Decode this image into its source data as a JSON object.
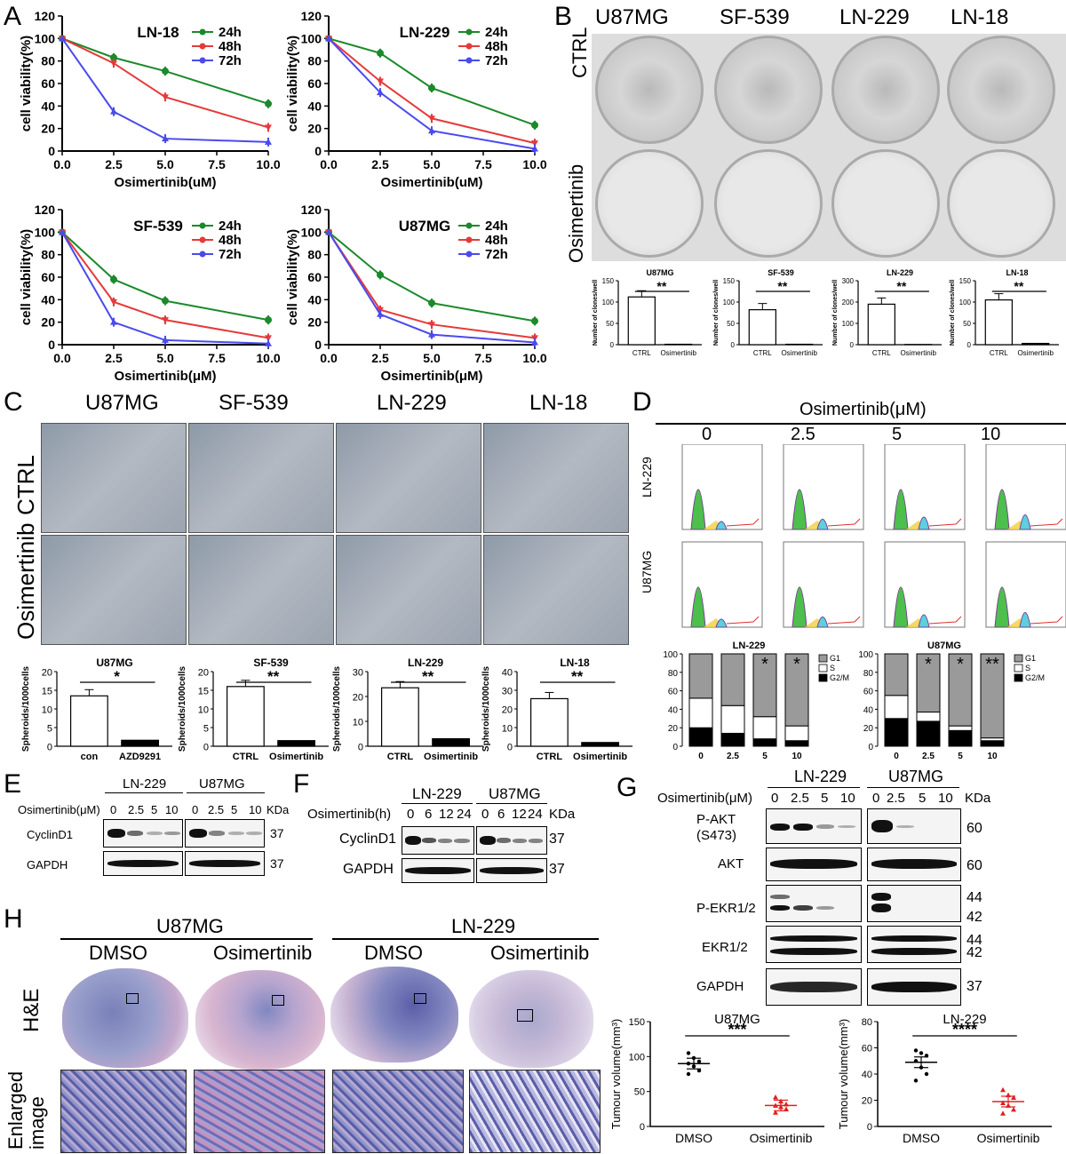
{
  "panels": {
    "A": "A",
    "B": "B",
    "C": "C",
    "D": "D",
    "E": "E",
    "F": "F",
    "G": "G",
    "H": "H"
  },
  "chart_data": [
    {
      "type": "line",
      "title": "LN-18",
      "xlabel": "Osimertinib(uM)",
      "ylabel": "cell viability(%)",
      "x": [
        0,
        2.5,
        5,
        10
      ],
      "xlim": [
        0,
        10
      ],
      "ylim": [
        0,
        120
      ],
      "xticks": [
        "0.0",
        "2.5",
        "5.0",
        "7.5",
        "10.0"
      ],
      "yticks": [
        "0",
        "20",
        "40",
        "60",
        "80",
        "100",
        "120"
      ],
      "series": [
        {
          "name": "24h",
          "color": "#1a8a2a",
          "values": [
            100,
            83,
            71,
            42
          ]
        },
        {
          "name": "48h",
          "color": "#e53a3a",
          "values": [
            100,
            78,
            48,
            21
          ]
        },
        {
          "name": "72h",
          "color": "#4a4aee",
          "values": [
            100,
            35,
            11,
            8
          ]
        }
      ]
    },
    {
      "type": "line",
      "title": "LN-229",
      "xlabel": "Osimertinib(uM)",
      "ylabel": "cell viability(%)",
      "x": [
        0,
        2.5,
        5,
        10
      ],
      "xlim": [
        0,
        10
      ],
      "ylim": [
        0,
        120
      ],
      "xticks": [
        "0.0",
        "2.5",
        "5.0",
        "7.5",
        "10.0"
      ],
      "yticks": [
        "0",
        "20",
        "40",
        "60",
        "80",
        "100",
        "120"
      ],
      "series": [
        {
          "name": "24h",
          "color": "#1a8a2a",
          "values": [
            100,
            87,
            56,
            23
          ]
        },
        {
          "name": "48h",
          "color": "#e53a3a",
          "values": [
            100,
            62,
            29,
            7
          ]
        },
        {
          "name": "72h",
          "color": "#4a4aee",
          "values": [
            100,
            52,
            18,
            2
          ]
        }
      ]
    },
    {
      "type": "line",
      "title": "SF-539",
      "xlabel": "Osimertinib(μM)",
      "ylabel": "cell viability(%)",
      "x": [
        0,
        2.5,
        5,
        10
      ],
      "xlim": [
        0,
        10
      ],
      "ylim": [
        0,
        120
      ],
      "xticks": [
        "0.0",
        "2.5",
        "5.0",
        "7.5",
        "10.0"
      ],
      "yticks": [
        "0",
        "20",
        "40",
        "60",
        "80",
        "100",
        "120"
      ],
      "series": [
        {
          "name": "24h",
          "color": "#1a8a2a",
          "values": [
            100,
            58,
            39,
            22
          ]
        },
        {
          "name": "48h",
          "color": "#e53a3a",
          "values": [
            100,
            38,
            22,
            6
          ]
        },
        {
          "name": "72h",
          "color": "#4a4aee",
          "values": [
            100,
            20,
            4,
            1
          ]
        }
      ]
    },
    {
      "type": "line",
      "title": "U87MG",
      "xlabel": "Osimertinib(μM)",
      "ylabel": "cell viability(%)",
      "x": [
        0,
        2.5,
        5,
        10
      ],
      "xlim": [
        0,
        10
      ],
      "ylim": [
        0,
        120
      ],
      "xticks": [
        "0.0",
        "2.5",
        "5.0",
        "7.5",
        "10.0"
      ],
      "yticks": [
        "0",
        "20",
        "40",
        "60",
        "80",
        "100",
        "120"
      ],
      "series": [
        {
          "name": "24h",
          "color": "#1a8a2a",
          "values": [
            100,
            62,
            37,
            21
          ]
        },
        {
          "name": "48h",
          "color": "#e53a3a",
          "values": [
            100,
            31,
            18,
            6
          ]
        },
        {
          "name": "72h",
          "color": "#4a4aee",
          "values": [
            100,
            27,
            9,
            2
          ]
        }
      ]
    },
    {
      "type": "bar",
      "title": "U87MG",
      "ylabel": "Number of clones/well",
      "sig": "**",
      "categories": [
        "CTRL",
        "Osimertinib"
      ],
      "values": [
        112,
        1
      ],
      "ylim": [
        0,
        150
      ],
      "yticks": [
        "0",
        "50",
        "100",
        "150"
      ]
    },
    {
      "type": "bar",
      "title": "SF-539",
      "ylabel": "Number of clones/well",
      "sig": "**",
      "categories": [
        "CTRL",
        "Osimertinib"
      ],
      "values": [
        82,
        1
      ],
      "ylim": [
        0,
        150
      ],
      "yticks": [
        "0",
        "50",
        "100",
        "150"
      ]
    },
    {
      "type": "bar",
      "title": "LN-229",
      "ylabel": "Number of clones/well",
      "sig": "**",
      "categories": [
        "CTRL",
        "Osimertinib"
      ],
      "values": [
        190,
        1
      ],
      "ylim": [
        0,
        300
      ],
      "yticks": [
        "0",
        "100",
        "200",
        "300"
      ]
    },
    {
      "type": "bar",
      "title": "LN-18",
      "ylabel": "Number of clones/well",
      "sig": "**",
      "categories": [
        "CTRL",
        "Osimertinib"
      ],
      "values": [
        105,
        3
      ],
      "ylim": [
        0,
        150
      ],
      "yticks": [
        "0",
        "50",
        "100",
        "150"
      ]
    },
    {
      "type": "bar",
      "title": "U87MG",
      "ylabel": "Spheroids/1000cells",
      "sig": "*",
      "categories": [
        "con",
        "AZD9291"
      ],
      "values": [
        13.5,
        1.6
      ],
      "ylim": [
        0,
        20
      ],
      "yticks": [
        "0",
        "5",
        "10",
        "15",
        "20"
      ]
    },
    {
      "type": "bar",
      "title": "SF-539",
      "ylabel": "Spheroids/1000cells",
      "sig": "**",
      "categories": [
        "CTRL",
        "Osimertinib"
      ],
      "values": [
        16,
        1.5
      ],
      "ylim": [
        0,
        20
      ],
      "yticks": [
        "0",
        "5",
        "10",
        "15",
        "20"
      ]
    },
    {
      "type": "bar",
      "title": "LN-229",
      "ylabel": "Spheroids/1000cells",
      "sig": "**",
      "categories": [
        "CTRL",
        "Osimertinib"
      ],
      "values": [
        23.5,
        3
      ],
      "ylim": [
        0,
        30
      ],
      "yticks": [
        "0",
        "10",
        "20",
        "30"
      ]
    },
    {
      "type": "bar",
      "title": "LN-18",
      "ylabel": "Spheroids/1000cells",
      "sig": "**",
      "categories": [
        "CTRL",
        "Osimertinib"
      ],
      "values": [
        25.5,
        2
      ],
      "ylim": [
        0,
        40
      ],
      "yticks": [
        "0",
        "10",
        "20",
        "30",
        "40"
      ]
    },
    {
      "type": "bar",
      "stacked": true,
      "title": "LN-229",
      "categories": [
        "0",
        "2.5",
        "5",
        "10"
      ],
      "ylim": [
        0,
        100
      ],
      "yticks": [
        "0",
        "20",
        "40",
        "60",
        "80",
        "100"
      ],
      "sig": [
        "",
        "",
        "*",
        "*"
      ],
      "series": [
        {
          "name": "G2/M",
          "color": "#000000",
          "values": [
            20,
            14,
            8,
            6
          ]
        },
        {
          "name": "S",
          "color": "#ffffff",
          "values": [
            32,
            30,
            24,
            16
          ]
        },
        {
          "name": "G1",
          "color": "#9a9a9a",
          "values": [
            48,
            56,
            68,
            78
          ]
        }
      ]
    },
    {
      "type": "bar",
      "stacked": true,
      "title": "U87MG",
      "categories": [
        "0",
        "2.5",
        "5",
        "10"
      ],
      "ylim": [
        0,
        100
      ],
      "yticks": [
        "0",
        "20",
        "40",
        "60",
        "80",
        "100"
      ],
      "sig": [
        "",
        "*",
        "*",
        "**"
      ],
      "series": [
        {
          "name": "G2/M",
          "color": "#000000",
          "values": [
            30,
            27,
            17,
            6
          ]
        },
        {
          "name": "S",
          "color": "#ffffff",
          "values": [
            25,
            10,
            5,
            3
          ]
        },
        {
          "name": "G1",
          "color": "#9a9a9a",
          "values": [
            45,
            63,
            78,
            91
          ]
        }
      ]
    },
    {
      "type": "scatter",
      "title": "U87MG",
      "ylabel": "Tumour volume(mm³)",
      "sig": "***",
      "categories": [
        "DMSO",
        "Osimertinib"
      ],
      "ylim": [
        0,
        150
      ],
      "yticks": [
        "0",
        "50",
        "100",
        "150"
      ],
      "series": [
        {
          "name": "DMSO",
          "color": "#000000",
          "values": [
            105,
            98,
            93,
            90,
            86,
            80,
            75
          ]
        },
        {
          "name": "Osimertinib",
          "color": "#e02020",
          "values": [
            42,
            36,
            32,
            30,
            28,
            25,
            20
          ]
        }
      ],
      "means": [
        90,
        30
      ]
    },
    {
      "type": "scatter",
      "title": "LN-229",
      "ylabel": "Tumour volume(mm³)",
      "sig": "****",
      "categories": [
        "DMSO",
        "Osimertinib"
      ],
      "ylim": [
        0,
        80
      ],
      "yticks": [
        "0",
        "20",
        "40",
        "60",
        "80"
      ],
      "series": [
        {
          "name": "DMSO",
          "color": "#000000",
          "values": [
            58,
            56,
            54,
            50,
            45,
            40,
            35
          ]
        },
        {
          "name": "Osimertinib",
          "color": "#e02020",
          "values": [
            28,
            24,
            22,
            18,
            16,
            13,
            10
          ]
        }
      ],
      "means": [
        49,
        19
      ]
    }
  ],
  "B": {
    "cols": [
      "U87MG",
      "SF-539",
      "LN-229",
      "LN-18"
    ],
    "rows": [
      "CTRL",
      "Osimertinib"
    ]
  },
  "C": {
    "cols": [
      "U87MG",
      "SF-539",
      "LN-229",
      "LN-18"
    ],
    "rows": [
      "CTRL",
      "Osimertinib"
    ]
  },
  "D": {
    "header": "Osimertinib(μM)",
    "cols": [
      "0",
      "2.5",
      "5",
      "10"
    ],
    "rows": [
      "LN-229",
      "U87MG"
    ],
    "legend": [
      "G1",
      "S",
      "G2/M"
    ]
  },
  "E": {
    "treat": "Osimertinib(μM)",
    "lines": [
      "LN-229",
      "U87MG"
    ],
    "doses": [
      "0",
      "2.5",
      "5",
      "10"
    ],
    "kda": "KDa",
    "rows": [
      {
        "label": "CyclinD1",
        "kda": "37"
      },
      {
        "label": "GAPDH",
        "kda": "37"
      }
    ]
  },
  "F": {
    "treat": "Osimertinib(h)",
    "lines": [
      "LN-229",
      "U87MG"
    ],
    "times": [
      "0",
      "6",
      "12",
      "24"
    ],
    "kda": "KDa",
    "rows": [
      {
        "label": "CyclinD1",
        "kda": "37"
      },
      {
        "label": "GAPDH",
        "kda": "37"
      }
    ]
  },
  "G": {
    "treat": "Osimertinib(μM)",
    "lines": [
      "LN-229",
      "U87MG"
    ],
    "doses": [
      "0",
      "2.5",
      "5",
      "10"
    ],
    "kda": "KDa",
    "rows": [
      {
        "label": "P-AKT",
        "label2": "(S473)",
        "kda": "60",
        "kda2": ""
      },
      {
        "label": "AKT",
        "label2": "",
        "kda": "60",
        "kda2": ""
      },
      {
        "label": "P-EKR1/2",
        "label2": "",
        "kda": "44",
        "kda2": "42"
      },
      {
        "label": "EKR1/2",
        "label2": "",
        "kda": "44",
        "kda2": "42"
      },
      {
        "label": "GAPDH",
        "label2": "",
        "kda": "37",
        "kda2": ""
      }
    ]
  },
  "H": {
    "groups": [
      "U87MG",
      "LN-229"
    ],
    "treat": [
      "DMSO",
      "Osimertinib",
      "DMSO",
      "Osimertinib"
    ],
    "rows": [
      "H&E",
      "Enlarged",
      "image"
    ]
  }
}
